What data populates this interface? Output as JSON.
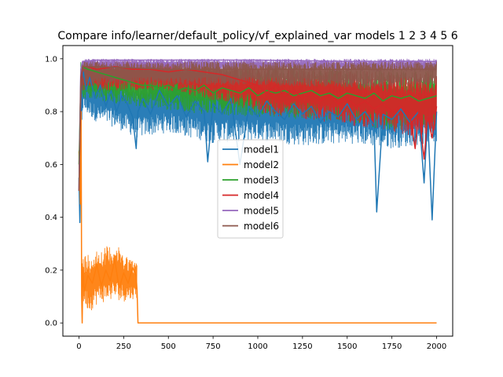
{
  "chart_data": {
    "type": "line",
    "title": "Compare info/learner/default_policy/vf_explained_var models 1 2 3 4 5 6",
    "xlabel": "",
    "ylabel": "",
    "xlim": [
      -90,
      2090
    ],
    "ylim": [
      -0.05,
      1.05
    ],
    "xticks": [
      0,
      250,
      500,
      750,
      1000,
      1250,
      1500,
      1750,
      2000
    ],
    "xtick_labels": [
      "0",
      "250",
      "500",
      "750",
      "1000",
      "1250",
      "1500",
      "1750",
      "2000"
    ],
    "yticks": [
      0.0,
      0.2,
      0.4,
      0.6,
      0.8,
      1.0
    ],
    "ytick_labels": [
      "0.0",
      "0.2",
      "0.4",
      "0.6",
      "0.8",
      "1.0"
    ],
    "grid": false,
    "legend_position": "center",
    "series": [
      {
        "name": "model1",
        "color": "#1f77b4",
        "x": [
          0,
          5,
          10,
          15,
          25,
          40,
          60,
          90,
          120,
          150,
          180,
          210,
          240,
          270,
          300,
          320,
          330,
          360,
          400,
          450,
          500,
          550,
          600,
          650,
          700,
          720,
          750,
          800,
          850,
          900,
          950,
          1000,
          1050,
          1100,
          1150,
          1200,
          1250,
          1300,
          1350,
          1400,
          1450,
          1500,
          1550,
          1600,
          1650,
          1665,
          1700,
          1750,
          1800,
          1850,
          1900,
          1930,
          1950,
          1975,
          2000
        ],
        "y": [
          0.55,
          0.38,
          0.7,
          0.92,
          0.95,
          0.88,
          0.93,
          0.85,
          0.9,
          0.82,
          0.88,
          0.8,
          0.86,
          0.83,
          0.78,
          0.66,
          0.8,
          0.85,
          0.79,
          0.88,
          0.82,
          0.86,
          0.78,
          0.84,
          0.8,
          0.61,
          0.83,
          0.79,
          0.85,
          0.6,
          0.82,
          0.78,
          0.84,
          0.8,
          0.77,
          0.83,
          0.79,
          0.82,
          0.76,
          0.8,
          0.78,
          0.83,
          0.77,
          0.8,
          0.75,
          0.42,
          0.79,
          0.77,
          0.81,
          0.76,
          0.8,
          0.53,
          0.78,
          0.39,
          0.8
        ],
        "band": [
          [
            0,
            0.5,
            0.7
          ],
          [
            20,
            0.8,
            0.98
          ],
          [
            100,
            0.76,
            0.95
          ],
          [
            200,
            0.74,
            0.94
          ],
          [
            320,
            0.7,
            0.92
          ],
          [
            500,
            0.72,
            0.94
          ],
          [
            750,
            0.68,
            0.93
          ],
          [
            1000,
            0.69,
            0.92
          ],
          [
            1250,
            0.67,
            0.92
          ],
          [
            1500,
            0.68,
            0.91
          ],
          [
            1750,
            0.66,
            0.91
          ],
          [
            2000,
            0.68,
            0.9
          ]
        ]
      },
      {
        "name": "model2",
        "color": "#ff7f0e",
        "x": [
          0,
          8,
          12,
          15,
          18,
          22,
          30,
          50,
          75,
          100,
          125,
          150,
          175,
          200,
          225,
          250,
          275,
          300,
          320,
          325,
          330,
          500,
          1000,
          1500,
          2000
        ],
        "y": [
          0.65,
          0.45,
          0.8,
          0.1,
          0.0,
          0.2,
          0.12,
          0.18,
          0.15,
          0.22,
          0.14,
          0.2,
          0.16,
          0.24,
          0.13,
          0.19,
          0.15,
          0.21,
          0.18,
          0.12,
          0.0,
          0.0,
          0.0,
          0.0,
          0.0
        ],
        "band": [
          [
            18,
            0.08,
            0.25
          ],
          [
            60,
            0.04,
            0.27
          ],
          [
            100,
            0.07,
            0.28
          ],
          [
            150,
            0.08,
            0.29
          ],
          [
            200,
            0.09,
            0.3
          ],
          [
            250,
            0.08,
            0.27
          ],
          [
            300,
            0.09,
            0.24
          ],
          [
            325,
            0.09,
            0.23
          ]
        ]
      },
      {
        "name": "model3",
        "color": "#2ca02c",
        "x": [
          0,
          10,
          20,
          50,
          100,
          150,
          200,
          250,
          300,
          350,
          400,
          450,
          500,
          550,
          600,
          650,
          700,
          750,
          800,
          850,
          900,
          950,
          1000,
          1050,
          1100,
          1150,
          1200,
          1250,
          1300,
          1350,
          1400,
          1450,
          1500,
          1550,
          1600,
          1650,
          1700,
          1750,
          1800,
          1850,
          1900,
          1950,
          2000
        ],
        "y": [
          0.6,
          0.9,
          0.97,
          0.96,
          0.95,
          0.94,
          0.93,
          0.92,
          0.91,
          0.9,
          0.9,
          0.89,
          0.9,
          0.88,
          0.89,
          0.88,
          0.9,
          0.87,
          0.89,
          0.88,
          0.87,
          0.89,
          0.86,
          0.88,
          0.87,
          0.88,
          0.86,
          0.87,
          0.88,
          0.86,
          0.87,
          0.85,
          0.87,
          0.86,
          0.85,
          0.87,
          0.84,
          0.86,
          0.85,
          0.86,
          0.84,
          0.85,
          0.86
        ],
        "band": [
          [
            10,
            0.85,
            0.99
          ],
          [
            300,
            0.82,
            0.98
          ],
          [
            700,
            0.79,
            0.98
          ],
          [
            1000,
            0.78,
            0.97
          ],
          [
            1500,
            0.76,
            0.97
          ],
          [
            1700,
            0.73,
            0.96
          ],
          [
            2000,
            0.74,
            0.96
          ]
        ]
      },
      {
        "name": "model4",
        "color": "#d62728",
        "x": [
          0,
          10,
          20,
          50,
          100,
          200,
          300,
          400,
          500,
          600,
          700,
          800,
          900,
          1000,
          1050,
          1100,
          1150,
          1200,
          1250,
          1300,
          1350,
          1400,
          1450,
          1500,
          1550,
          1600,
          1650,
          1700,
          1750,
          1800,
          1850,
          1880,
          1900,
          1930,
          1950,
          1975,
          2000
        ],
        "y": [
          0.5,
          0.88,
          0.97,
          0.97,
          0.96,
          0.97,
          0.96,
          0.96,
          0.95,
          0.96,
          0.95,
          0.94,
          0.92,
          0.9,
          0.87,
          0.9,
          0.86,
          0.88,
          0.85,
          0.87,
          0.84,
          0.86,
          0.83,
          0.85,
          0.82,
          0.84,
          0.81,
          0.83,
          0.8,
          0.82,
          0.79,
          0.66,
          0.8,
          0.62,
          0.78,
          0.7,
          0.82
        ],
        "band": [
          [
            20,
            0.88,
            0.99
          ],
          [
            500,
            0.88,
            0.99
          ],
          [
            900,
            0.82,
            0.98
          ],
          [
            1100,
            0.78,
            0.97
          ],
          [
            1400,
            0.76,
            0.96
          ],
          [
            1700,
            0.73,
            0.95
          ],
          [
            1900,
            0.7,
            0.95
          ],
          [
            2000,
            0.72,
            0.95
          ]
        ]
      },
      {
        "name": "model5",
        "color": "#9467bd",
        "x": [
          0,
          10,
          20,
          100,
          500,
          1000,
          1500,
          2000
        ],
        "y": [
          0.5,
          0.96,
          0.99,
          0.995,
          0.995,
          0.995,
          0.99,
          0.99
        ],
        "band": [
          [
            20,
            0.96,
            1.0
          ],
          [
            2000,
            0.95,
            1.0
          ]
        ]
      },
      {
        "name": "model6",
        "color": "#8c564b",
        "x": [
          0,
          10,
          20,
          100,
          500,
          1000,
          1500,
          2000
        ],
        "y": [
          0.5,
          0.93,
          0.97,
          0.97,
          0.96,
          0.96,
          0.96,
          0.96
        ],
        "band": [
          [
            20,
            0.9,
            0.99
          ],
          [
            500,
            0.9,
            0.99
          ],
          [
            1000,
            0.9,
            0.99
          ],
          [
            1500,
            0.89,
            0.99
          ],
          [
            2000,
            0.9,
            0.99
          ]
        ]
      }
    ]
  }
}
